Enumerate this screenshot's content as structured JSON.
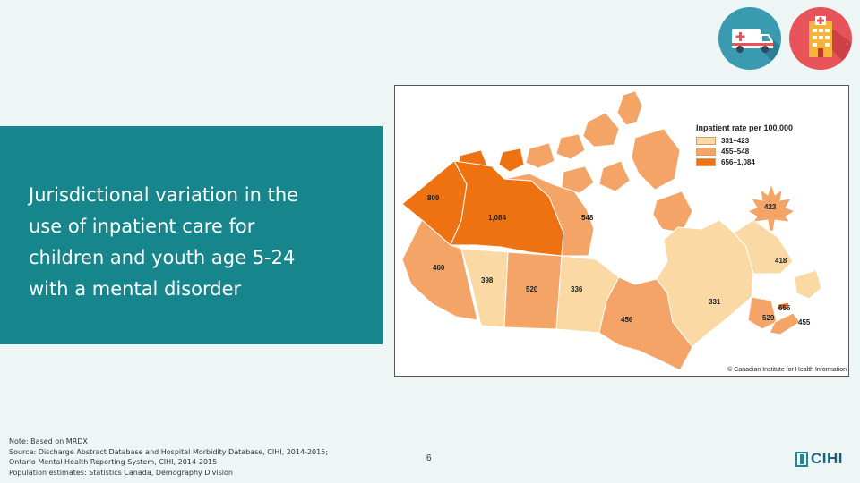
{
  "title": "Jurisdictional variation in the use of inpatient care for children and youth age 5-24 with a mental disorder",
  "icons": {
    "left": "ambulance-icon",
    "right": "hospital-icon"
  },
  "legend": {
    "title": "Inpatient rate per 100,000",
    "items": [
      {
        "label": "331–423",
        "color": "#fbd9a4"
      },
      {
        "label": "455–548",
        "color": "#f5a468"
      },
      {
        "label": "656–1,084",
        "color": "#ee7212"
      }
    ]
  },
  "regions": {
    "yukon": {
      "value": "809"
    },
    "nwt": {
      "value": "1,084"
    },
    "nunavut": {
      "value": "548"
    },
    "bc": {
      "value": "460"
    },
    "alberta": {
      "value": "398"
    },
    "saskatchewan": {
      "value": "520"
    },
    "manitoba": {
      "value": "336"
    },
    "ontario": {
      "value": "456"
    },
    "quebec": {
      "value": "331"
    },
    "newfoundland": {
      "value": "418"
    },
    "new_brunswick": {
      "value": "529"
    },
    "pei": {
      "value": "656"
    },
    "nova_scotia": {
      "value": "455"
    },
    "canada": {
      "value": "423"
    }
  },
  "copyright": "© Canadian Institute for Health Information",
  "notes": [
    "Note: Based on MRDX",
    "Source: Discharge Abstract Database and Hospital Morbidity Database, CIHI, 2014-2015;",
    "Ontario Mental Health Reporting System, CIHI, 2014-2015",
    "Population estimates: Statistics Canada, Demography Division"
  ],
  "page_number": "6",
  "logo_text": "CIHI"
}
